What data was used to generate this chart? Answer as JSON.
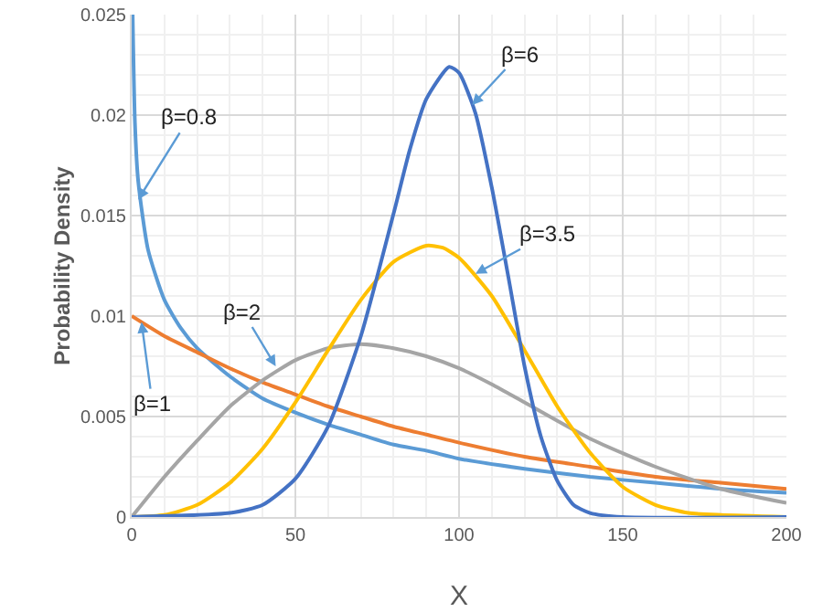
{
  "chart_data": {
    "type": "line",
    "xlabel": "X",
    "ylabel": "Probability Density",
    "xlim": [
      0,
      200
    ],
    "ylim": [
      0,
      0.025
    ],
    "xticks": [
      0,
      50,
      100,
      150,
      200
    ],
    "yticks": [
      0,
      0.005,
      0.01,
      0.015,
      0.02,
      0.025
    ],
    "grid": true,
    "marker": "none",
    "line_style": "solid",
    "series": [
      {
        "color": "#5b9bd5",
        "x": [
          0.3,
          1,
          2,
          5,
          10,
          15,
          20,
          30,
          40,
          50,
          60,
          70,
          80,
          90,
          100,
          120,
          140,
          160,
          180,
          200
        ],
        "values": [
          0.025,
          0.0196,
          0.0167,
          0.0133,
          0.0108,
          0.0094,
          0.0084,
          0.007,
          0.0059,
          0.0052,
          0.0046,
          0.0041,
          0.0036,
          0.0033,
          0.0029,
          0.0024,
          0.002,
          0.0017,
          0.0014,
          0.0012
        ]
      },
      {
        "color": "#ed7d31",
        "x": [
          0,
          10,
          20,
          30,
          40,
          50,
          60,
          70,
          80,
          90,
          100,
          120,
          140,
          160,
          180,
          200
        ],
        "values": [
          0.01,
          0.009,
          0.0082,
          0.0074,
          0.0067,
          0.0061,
          0.0055,
          0.005,
          0.0045,
          0.0041,
          0.0037,
          0.003,
          0.0025,
          0.002,
          0.0017,
          0.0014
        ]
      },
      {
        "color": "#a5a5a5",
        "x": [
          0,
          10,
          20,
          30,
          40,
          50,
          60,
          70,
          80,
          90,
          100,
          110,
          120,
          140,
          160,
          180,
          200
        ],
        "values": [
          0,
          0.002,
          0.0038,
          0.0055,
          0.0068,
          0.0078,
          0.0084,
          0.0086,
          0.0084,
          0.008,
          0.0074,
          0.0066,
          0.0057,
          0.0039,
          0.0025,
          0.0014,
          0.0007
        ]
      },
      {
        "color": "#ffc000",
        "x": [
          0,
          10,
          20,
          30,
          40,
          50,
          60,
          70,
          80,
          90,
          95,
          100,
          110,
          120,
          130,
          140,
          150,
          160,
          170,
          180,
          200
        ],
        "values": [
          0,
          0.0001,
          0.0006,
          0.0017,
          0.0034,
          0.0057,
          0.0083,
          0.0108,
          0.0127,
          0.0135,
          0.0134,
          0.0129,
          0.011,
          0.0083,
          0.0055,
          0.0032,
          0.0015,
          0.0006,
          0.0002,
          0.0001,
          0
        ]
      },
      {
        "color": "#4472c4",
        "x": [
          0,
          30,
          40,
          50,
          60,
          70,
          80,
          85,
          90,
          97,
          100,
          105,
          110,
          115,
          120,
          125,
          130,
          135,
          140,
          150,
          200
        ],
        "values": [
          0,
          0.0002,
          0.0006,
          0.0019,
          0.0045,
          0.009,
          0.0151,
          0.0183,
          0.0208,
          0.0224,
          0.0221,
          0.0201,
          0.0164,
          0.012,
          0.0075,
          0.004,
          0.0018,
          0.0006,
          0.0002,
          0,
          0
        ]
      }
    ],
    "annotations": [
      {
        "text": "β=0.8",
        "x": 2,
        "y": 0.0158
      },
      {
        "text": "β=1",
        "x": 3,
        "y": 0.0097
      },
      {
        "text": "β=2",
        "x": 44,
        "y": 0.0075
      },
      {
        "text": "β=6",
        "x": 104,
        "y": 0.0205
      },
      {
        "text": "β=3.5",
        "x": 105,
        "y": 0.0121
      }
    ]
  }
}
